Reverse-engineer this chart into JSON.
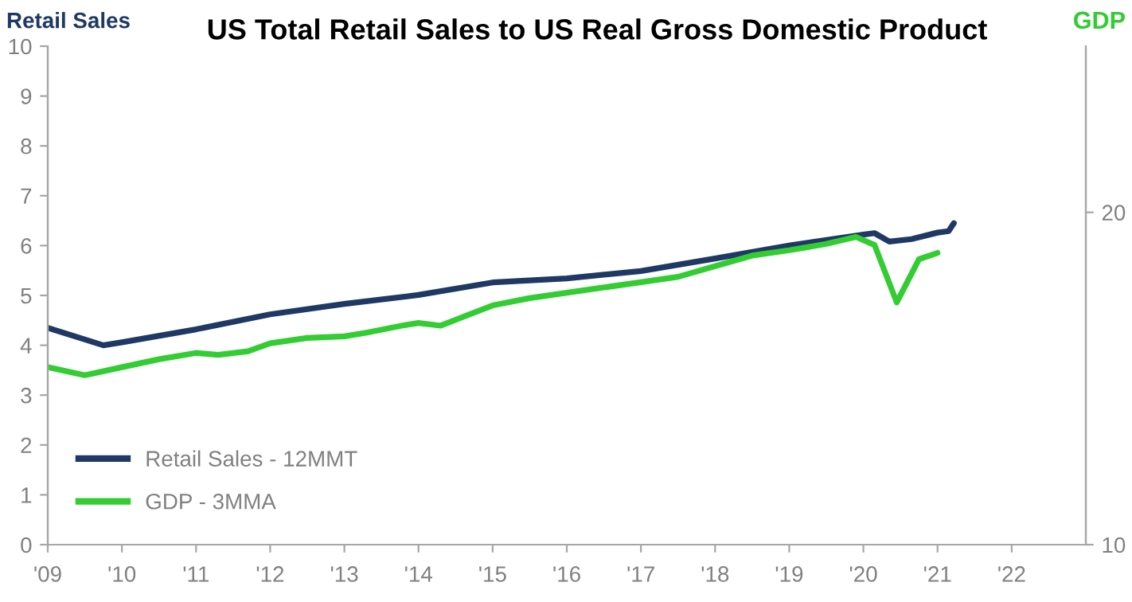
{
  "chart_data": {
    "type": "line",
    "title": "US Total Retail Sales to US Real Gross Domestic Product",
    "ylabel": "Retail Sales",
    "y2label": "GDP",
    "xlim": [
      2009,
      2023
    ],
    "xticks": [
      {
        "value": 2009,
        "label": "'09"
      },
      {
        "value": 2010,
        "label": "'10"
      },
      {
        "value": 2011,
        "label": "'11"
      },
      {
        "value": 2012,
        "label": "'12"
      },
      {
        "value": 2013,
        "label": "'13"
      },
      {
        "value": 2014,
        "label": "'14"
      },
      {
        "value": 2015,
        "label": "'15"
      },
      {
        "value": 2016,
        "label": "'16"
      },
      {
        "value": 2017,
        "label": "'17"
      },
      {
        "value": 2018,
        "label": "'18"
      },
      {
        "value": 2019,
        "label": "'19"
      },
      {
        "value": 2020,
        "label": "'20"
      },
      {
        "value": 2021,
        "label": "'21"
      },
      {
        "value": 2022,
        "label": "'22"
      }
    ],
    "ylim": [
      0,
      10
    ],
    "yticks": [
      0,
      1,
      2,
      3,
      4,
      5,
      6,
      7,
      8,
      9,
      10
    ],
    "y2lim": [
      10,
      25
    ],
    "y2ticks": [
      10,
      20
    ],
    "grid": false,
    "legend": "bottom left",
    "marker": "none",
    "line_style": "solid",
    "series": [
      {
        "name": "Retail Sales - 12MMT",
        "color": "#1f3864",
        "x": [
          2009.0,
          2009.75,
          2010.0,
          2011.0,
          2012.0,
          2013.0,
          2014.0,
          2015.0,
          2016.0,
          2017.0,
          2018.0,
          2019.0,
          2020.0,
          2020.15,
          2020.35,
          2020.65,
          2021.0,
          2021.15,
          2021.22
        ],
        "values": [
          4.35,
          4.0,
          4.06,
          4.32,
          4.62,
          4.83,
          5.01,
          5.26,
          5.34,
          5.49,
          5.74,
          6.0,
          6.22,
          6.25,
          6.08,
          6.13,
          6.26,
          6.29,
          6.45
        ]
      },
      {
        "name": "GDP - 3MMA",
        "color": "#33cc33",
        "axis": "y2",
        "x": [
          2009.0,
          2009.5,
          2010.0,
          2010.5,
          2011.0,
          2011.3,
          2011.7,
          2012.0,
          2012.5,
          2013.0,
          2013.3,
          2013.8,
          2014.0,
          2014.3,
          2014.7,
          2015.0,
          2015.5,
          2016.0,
          2017.0,
          2017.5,
          2018.0,
          2018.5,
          2019.0,
          2019.5,
          2019.9,
          2020.15,
          2020.45,
          2020.75,
          2021.0
        ],
        "values": [
          15.34,
          15.1,
          15.34,
          15.58,
          15.77,
          15.71,
          15.82,
          16.06,
          16.22,
          16.27,
          16.38,
          16.6,
          16.67,
          16.59,
          16.94,
          17.2,
          17.42,
          17.58,
          17.9,
          18.06,
          18.38,
          18.7,
          18.86,
          19.05,
          19.26,
          19.02,
          17.29,
          18.59,
          18.78
        ]
      }
    ]
  }
}
